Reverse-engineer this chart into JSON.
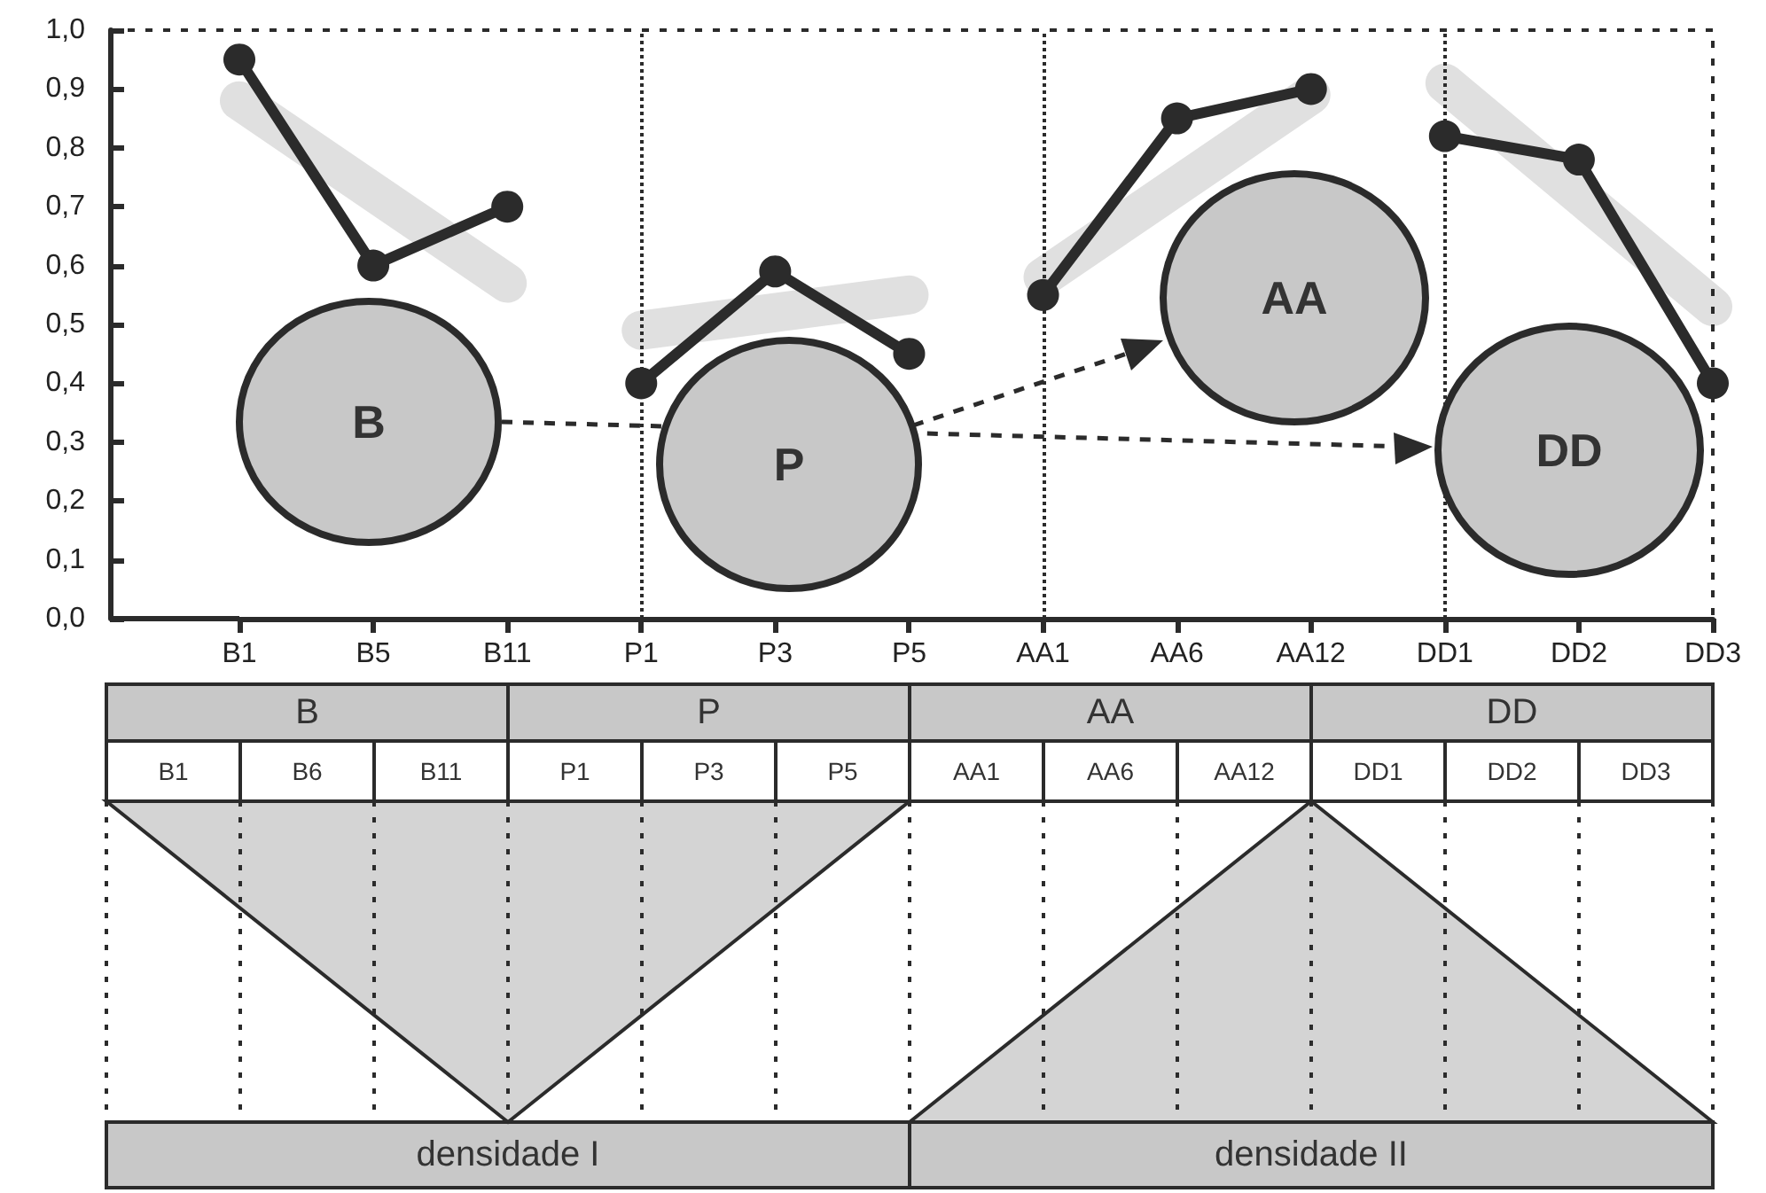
{
  "chart_data": {
    "type": "line",
    "categories": [
      "B1",
      "B5",
      "B11",
      "P1",
      "P3",
      "P5",
      "AA1",
      "AA6",
      "AA12",
      "DD1",
      "DD2",
      "DD3"
    ],
    "series": [
      {
        "color": "#e0e0e0",
        "line_style": "solid",
        "marker": "none",
        "values": [
          0.88,
          null,
          0.57,
          null,
          null,
          null,
          null,
          null,
          null,
          null,
          null,
          null
        ]
      },
      {
        "color": "#e0e0e0",
        "line_style": "solid",
        "marker": "none",
        "values": [
          null,
          null,
          null,
          0.49,
          null,
          0.55,
          null,
          null,
          null,
          null,
          null,
          null
        ]
      },
      {
        "color": "#e0e0e0",
        "line_style": "solid",
        "marker": "none",
        "values": [
          null,
          null,
          null,
          null,
          null,
          null,
          0.58,
          null,
          0.89,
          null,
          null,
          null
        ]
      },
      {
        "color": "#e0e0e0",
        "line_style": "solid",
        "marker": "none",
        "values": [
          null,
          null,
          null,
          null,
          null,
          null,
          null,
          null,
          null,
          0.91,
          null,
          0.53
        ]
      },
      {
        "color": "#2b2b2b",
        "values": [
          0.95,
          0.6,
          0.7,
          null,
          null,
          null,
          null,
          null,
          null,
          null,
          null,
          null
        ]
      },
      {
        "color": "#2b2b2b",
        "values": [
          null,
          null,
          null,
          0.4,
          0.59,
          0.45,
          null,
          null,
          null,
          null,
          null,
          null
        ]
      },
      {
        "color": "#2b2b2b",
        "values": [
          null,
          null,
          null,
          null,
          null,
          null,
          0.55,
          0.85,
          0.9,
          null,
          null,
          null
        ]
      },
      {
        "color": "#2b2b2b",
        "values": [
          null,
          null,
          null,
          null,
          null,
          null,
          null,
          null,
          null,
          0.82,
          0.78,
          0.4
        ]
      }
    ],
    "ylim": [
      0,
      1
    ],
    "yticks": [
      {
        "value": 0,
        "label": "0,0"
      },
      {
        "value": 0.1,
        "label": "0,1"
      },
      {
        "value": 0.2,
        "label": "0,2"
      },
      {
        "value": 0.3,
        "label": "0,3"
      },
      {
        "value": 0.4,
        "label": "0,4"
      },
      {
        "value": 0.5,
        "label": "0,5"
      },
      {
        "value": 0.6,
        "label": "0,6"
      },
      {
        "value": 0.7,
        "label": "0,7"
      },
      {
        "value": 0.8,
        "label": "0,8"
      },
      {
        "value": 0.9,
        "label": "0,9"
      },
      {
        "value": 1,
        "label": "1,0"
      }
    ],
    "marker": "circle",
    "line_style": "solid",
    "ref_lines": [
      {
        "axis": "x",
        "value": "P1",
        "line_style": "dotted",
        "color": "#2b2b2b"
      },
      {
        "axis": "x",
        "value": "AA1",
        "line_style": "dotted",
        "color": "#2b2b2b"
      },
      {
        "axis": "x",
        "value": "DD1",
        "line_style": "dotted",
        "color": "#2b2b2b"
      }
    ],
    "annotations": [
      "B",
      "P",
      "AA",
      "DD",
      "B",
      "P",
      "AA",
      "DD",
      "B1",
      "B6",
      "B11",
      "P1",
      "P3",
      "P5",
      "AA1",
      "AA6",
      "AA12",
      "DD1",
      "DD2",
      "DD3",
      "densidade I",
      "densidade II"
    ]
  }
}
